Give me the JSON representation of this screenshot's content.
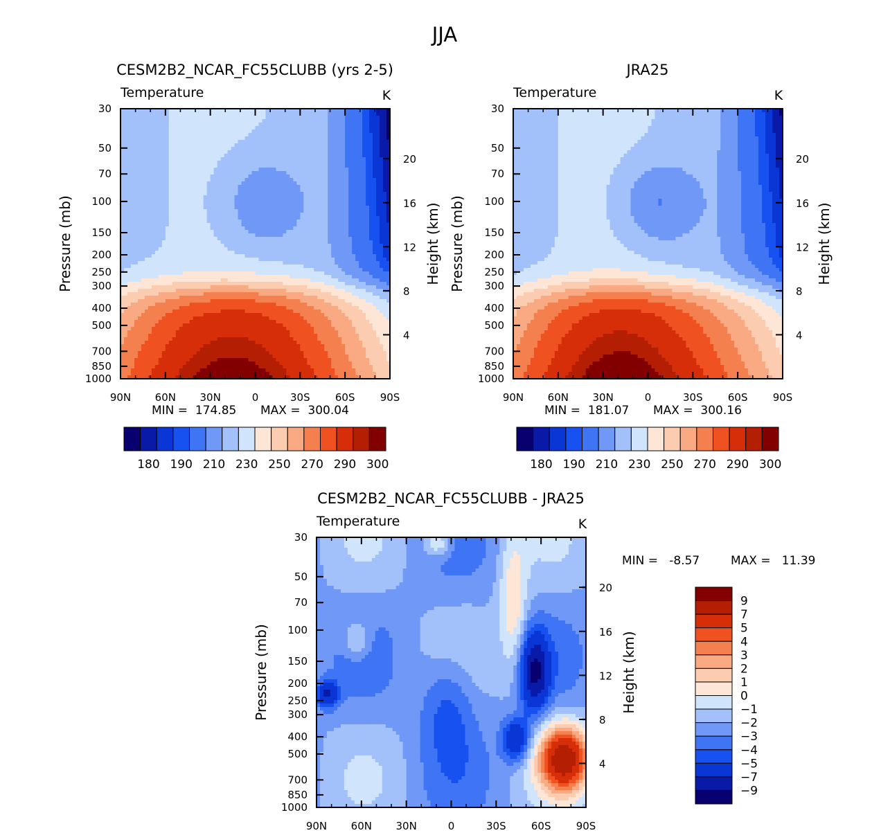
{
  "page": {
    "title": "JJA"
  },
  "colors": {
    "main_scale": [
      "#08006e",
      "#0a1aa8",
      "#0b36d6",
      "#1751f0",
      "#3f74f5",
      "#7098f7",
      "#a2c0fa",
      "#d0e5fc",
      "#fde6d6",
      "#fcccb0",
      "#f9aa82",
      "#f5804f",
      "#ef5220",
      "#d62e08",
      "#b41e02",
      "#820000"
    ],
    "diff_scale": [
      "#08006e",
      "#0a1aa8",
      "#0b36d6",
      "#1751f0",
      "#3f74f5",
      "#7098f7",
      "#a2c0fa",
      "#d0e5fc",
      "#fde6d6",
      "#fcccb0",
      "#f9aa82",
      "#f5804f",
      "#ef5220",
      "#d62e08",
      "#b41e02",
      "#820000"
    ]
  },
  "chart_data": [
    {
      "type": "heatmap",
      "id": "model",
      "title": "CESM2B2_NCAR_FC55CLUBB (yrs 2-5)",
      "variable": "Temperature",
      "units": "K",
      "xlabel": "",
      "ylabel": "Pressure (mb)",
      "ylabel_right": "Height (km)",
      "x_ticks": [
        "90N",
        "60N",
        "30N",
        "0",
        "30S",
        "60S",
        "90S"
      ],
      "y_ticks": [
        "30",
        "50",
        "70",
        "100",
        "150",
        "200",
        "250",
        "300",
        "400",
        "500",
        "700",
        "850",
        "1000"
      ],
      "y_ticks_right": [
        "20",
        "16",
        "12",
        "8",
        "4"
      ],
      "min_label": "MIN =  174.85",
      "max_label": "MAX =  300.04",
      "min": 174.85,
      "max": 300.04,
      "colorbar_labels": [
        "180",
        "190",
        "210",
        "230",
        "250",
        "270",
        "290",
        "300"
      ],
      "levels": [
        175,
        180,
        185,
        190,
        200,
        210,
        220,
        230,
        240,
        250,
        260,
        270,
        280,
        290,
        295,
        300
      ]
    },
    {
      "type": "heatmap",
      "id": "obs",
      "title": "JRA25",
      "variable": "Temperature",
      "units": "K",
      "xlabel": "",
      "ylabel": "Pressure (mb)",
      "ylabel_right": "Height (km)",
      "x_ticks": [
        "90N",
        "60N",
        "30N",
        "0",
        "30S",
        "60S",
        "90S"
      ],
      "y_ticks": [
        "30",
        "50",
        "70",
        "100",
        "150",
        "200",
        "250",
        "300",
        "400",
        "500",
        "700",
        "850",
        "1000"
      ],
      "y_ticks_right": [
        "20",
        "16",
        "12",
        "8",
        "4"
      ],
      "min_label": "MIN =  181.07",
      "max_label": "MAX =  300.16",
      "min": 181.07,
      "max": 300.16,
      "colorbar_labels": [
        "180",
        "190",
        "210",
        "230",
        "250",
        "270",
        "290",
        "300"
      ],
      "levels": [
        175,
        180,
        185,
        190,
        200,
        210,
        220,
        230,
        240,
        250,
        260,
        270,
        280,
        290,
        295,
        300
      ]
    },
    {
      "type": "heatmap",
      "id": "diff",
      "title": "CESM2B2_NCAR_FC55CLUBB - JRA25",
      "variable": "Temperature",
      "units": "K",
      "xlabel": "",
      "ylabel": "Pressure (mb)",
      "ylabel_right": "Height (km)",
      "x_ticks": [
        "90N",
        "60N",
        "30N",
        "0",
        "30S",
        "60S",
        "90S"
      ],
      "y_ticks": [
        "30",
        "50",
        "70",
        "100",
        "150",
        "200",
        "250",
        "300",
        "400",
        "500",
        "700",
        "850",
        "1000"
      ],
      "y_ticks_right": [
        "20",
        "16",
        "12",
        "8",
        "4"
      ],
      "min_label": "MIN =   -8.57",
      "max_label": "MAX =   11.39",
      "min": -8.57,
      "max": 11.39,
      "colorbar_labels": [
        "9",
        "7",
        "5",
        "4",
        "3",
        "2",
        "1",
        "0",
        "-1",
        "-2",
        "-3",
        "-4",
        "-5",
        "-7",
        "-9"
      ],
      "levels": [
        -9,
        -7,
        -5,
        -4,
        -3,
        -2,
        -1,
        0,
        1,
        2,
        3,
        4,
        5,
        7,
        9
      ]
    }
  ]
}
